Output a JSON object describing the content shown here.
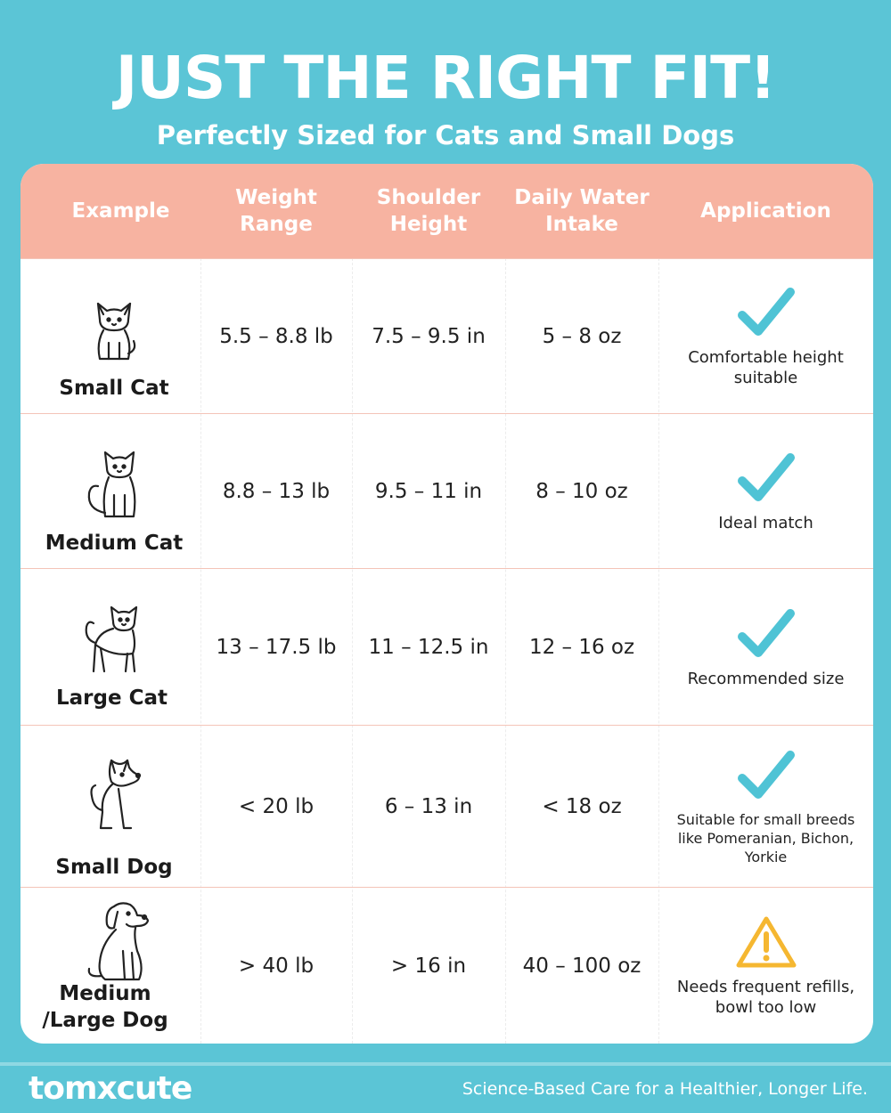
{
  "header": {
    "title": "JUST THE RIGHT FIT!",
    "subtitle": "Perfectly Sized for Cats and Small Dogs"
  },
  "table": {
    "columns": [
      {
        "line1": "Example",
        "line2": ""
      },
      {
        "line1": "Weight",
        "line2": "Range"
      },
      {
        "line1": "Shoulder",
        "line2": "Height"
      },
      {
        "line1": "Daily Water",
        "line2": "Intake"
      },
      {
        "line1": "Application",
        "line2": ""
      }
    ],
    "rows": [
      {
        "label_line1": "Small Cat",
        "label_line2": "",
        "icon": "small-cat-icon",
        "weight": "5.5 – 8.8 lb",
        "height": "7.5 – 9.5 in",
        "water": "5 – 8 oz",
        "status_icon": "checkmark-icon",
        "note": "Comfortable height suitable"
      },
      {
        "label_line1": "Medium Cat",
        "label_line2": "",
        "icon": "medium-cat-icon",
        "weight": "8.8 – 13 lb",
        "height": "9.5 – 11 in",
        "water": "8 – 10 oz",
        "status_icon": "checkmark-icon",
        "note": "Ideal match"
      },
      {
        "label_line1": "Large Cat",
        "label_line2": "",
        "icon": "large-cat-icon",
        "weight": "13 – 17.5 lb",
        "height": "11 – 12.5 in",
        "water": "12 – 16 oz",
        "status_icon": "checkmark-icon",
        "note": "Recommended size"
      },
      {
        "label_line1": "Small Dog",
        "label_line2": "",
        "icon": "small-dog-icon",
        "weight": "< 20 lb",
        "height": "6 – 13 in",
        "water": "< 18 oz",
        "status_icon": "checkmark-icon",
        "note": "Suitable for small breeds like Pomeranian, Bichon, Yorkie"
      },
      {
        "label_line1": "Medium",
        "label_line2": "/Large Dog",
        "icon": "large-dog-icon",
        "weight": "> 40 lb",
        "height": "> 16 in",
        "water": "40 – 100 oz",
        "status_icon": "warning-icon",
        "note": "Needs frequent refills, bowl too low"
      }
    ]
  },
  "footer": {
    "brand": "tomxcute",
    "tagline": "Science-Based Care for a Healthier, Longer Life."
  },
  "colors": {
    "background": "#5bc5d6",
    "header_row": "#f7b3a1",
    "check": "#4fc3d5",
    "warning": "#f5b731"
  }
}
